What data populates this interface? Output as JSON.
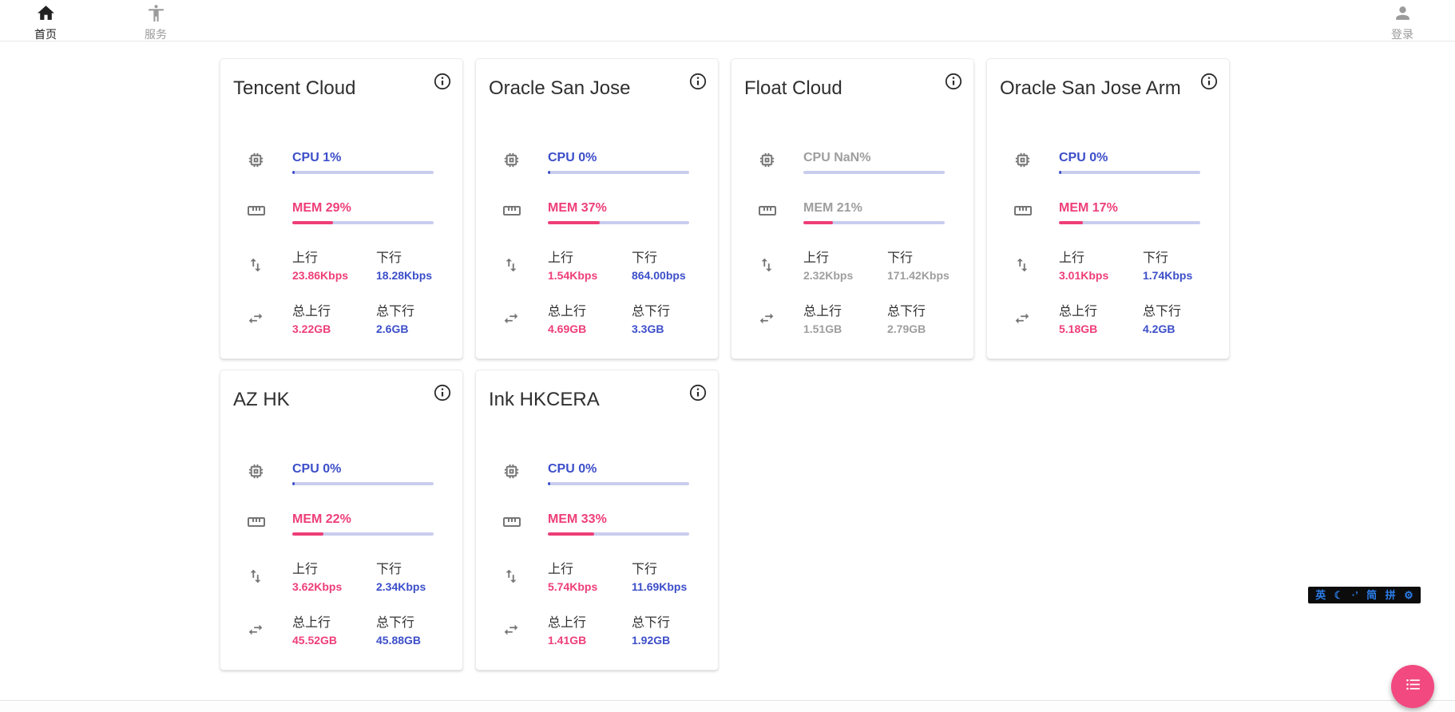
{
  "nav": {
    "home": {
      "label": "首页",
      "icon": "home-icon"
    },
    "services": {
      "label": "服务",
      "icon": "accessibility-icon"
    },
    "login": {
      "label": "登录",
      "icon": "person-icon"
    }
  },
  "labels": {
    "up": "上行",
    "down": "下行",
    "total_up": "总上行",
    "total_down": "总下行"
  },
  "colors": {
    "accent_blue": "#3c4ec9",
    "accent_pink": "#ee3e78",
    "progress_track": "#c9cdee",
    "muted_gray": "#9e9e9e",
    "ime_blue": "#2b7de9",
    "fab_pink": "#f14980"
  },
  "servers": [
    {
      "name": "Tencent Cloud",
      "cpu_label": "CPU 1%",
      "cpu_pct": 1,
      "mem_label": "MEM 29%",
      "mem_pct": 29,
      "up": "23.86Kbps",
      "down": "18.28Kbps",
      "total_up": "3.22GB",
      "total_down": "2.6GB",
      "muted": false
    },
    {
      "name": "Oracle San Jose",
      "cpu_label": "CPU 0%",
      "cpu_pct": 0,
      "mem_label": "MEM 37%",
      "mem_pct": 37,
      "up": "1.54Kbps",
      "down": "864.00bps",
      "total_up": "4.69GB",
      "total_down": "3.3GB",
      "muted": false
    },
    {
      "name": "Float Cloud",
      "cpu_label": "CPU NaN%",
      "cpu_pct": null,
      "mem_label": "MEM 21%",
      "mem_pct": 21,
      "up": "2.32Kbps",
      "down": "171.42Kbps",
      "total_up": "1.51GB",
      "total_down": "2.79GB",
      "muted": true
    },
    {
      "name": "Oracle San Jose Arm",
      "cpu_label": "CPU 0%",
      "cpu_pct": 0,
      "mem_label": "MEM 17%",
      "mem_pct": 17,
      "up": "3.01Kbps",
      "down": "1.74Kbps",
      "total_up": "5.18GB",
      "total_down": "4.2GB",
      "muted": false
    },
    {
      "name": "AZ HK",
      "cpu_label": "CPU 0%",
      "cpu_pct": 0,
      "mem_label": "MEM 22%",
      "mem_pct": 22,
      "up": "3.62Kbps",
      "down": "2.34Kbps",
      "total_up": "45.52GB",
      "total_down": "45.88GB",
      "muted": false
    },
    {
      "name": "Ink HKCERA",
      "cpu_label": "CPU 0%",
      "cpu_pct": 0,
      "mem_label": "MEM 33%",
      "mem_pct": 33,
      "up": "5.74Kbps",
      "down": "11.69Kbps",
      "total_up": "1.41GB",
      "total_down": "1.92GB",
      "muted": false
    }
  ],
  "ime_toolbar": {
    "items": [
      {
        "glyph": "英",
        "icon": "ime-english-mode"
      },
      {
        "glyph": "☾",
        "icon": "ime-halfwidth-moon-icon"
      },
      {
        "glyph": "·’",
        "icon": "ime-punctuation-mode"
      },
      {
        "glyph": "简",
        "icon": "ime-simplified-chinese"
      },
      {
        "glyph": "拼",
        "icon": "ime-pinyin-mode"
      },
      {
        "glyph": "⚙",
        "icon": "ime-settings-gear-icon"
      }
    ]
  },
  "fab": {
    "icon": "list-menu-icon"
  }
}
